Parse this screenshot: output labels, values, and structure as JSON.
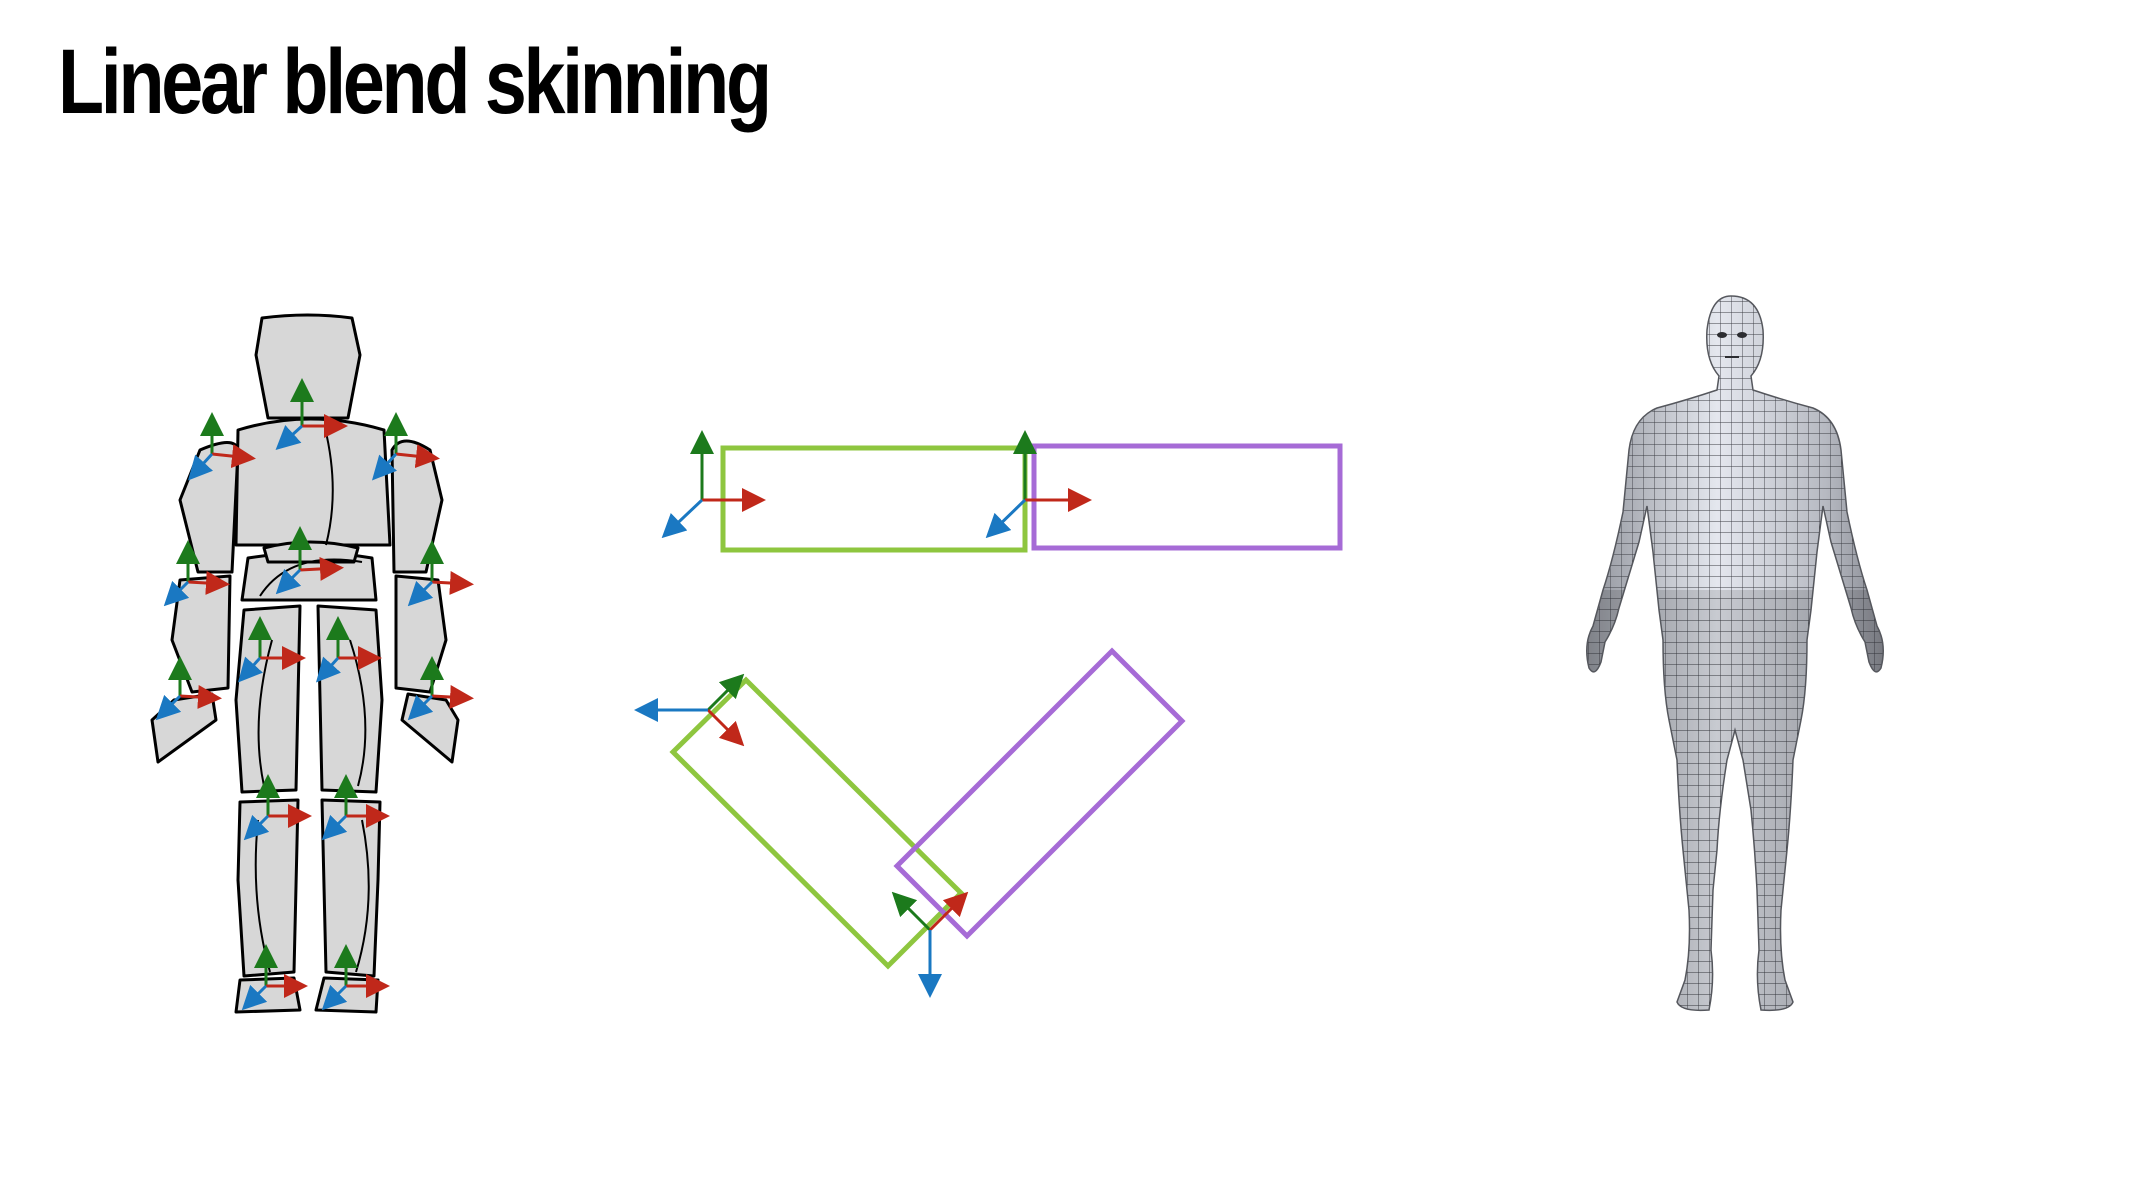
{
  "slide": {
    "title": "Linear blend skinning"
  },
  "figures": {
    "rig_figure": {
      "icon": "mannequin-joint-frames"
    },
    "bone_diagram": {
      "icon": "two-bone-frames"
    },
    "mesh_figure": {
      "icon": "human-wireframe-mesh"
    }
  },
  "colors": {
    "axis_x": "#c0281a",
    "axis_y": "#1c7a1c",
    "axis_z": "#1a78c2",
    "bone_1": "#8ec63f",
    "bone_2": "#a66bd6",
    "body_fill": "#d7d7d7",
    "mesh_fill": "#c9ccd3"
  }
}
